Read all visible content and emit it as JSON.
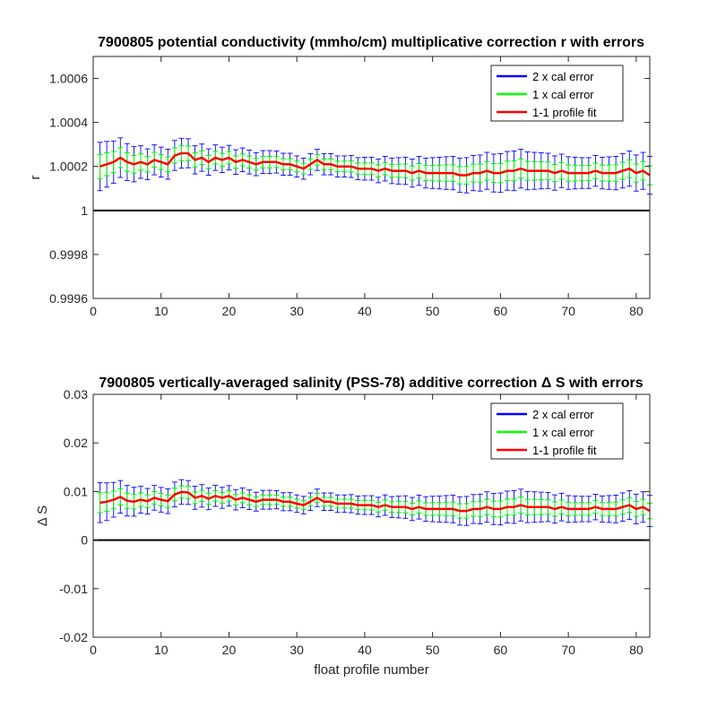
{
  "chart_data": [
    {
      "type": "line",
      "title": "7900805 potential conductivity (mmho/cm) multiplicative correction r with errors",
      "xlabel": "",
      "ylabel": "r",
      "xlim": [
        0,
        82
      ],
      "ylim": [
        0.9996,
        1.0007
      ],
      "xticks": [
        0,
        10,
        20,
        30,
        40,
        50,
        60,
        70,
        80
      ],
      "xtick_labels": [
        "0",
        "10",
        "20",
        "30",
        "40",
        "50",
        "60",
        "70",
        "80"
      ],
      "yticks": [
        0.9996,
        0.9998,
        1,
        1.0002,
        1.0004,
        1.0006
      ],
      "ytick_labels": [
        "0.9996",
        "0.9998",
        "1",
        "1.0002",
        "1.0004",
        "1.0006"
      ],
      "reference_line": 1,
      "legend_position": "top-right",
      "legend": [
        "2 x cal error",
        "1 x cal error",
        "1-1 profile fit"
      ],
      "colors": {
        "two_x_cal_error": "#0000ff",
        "one_x_cal_error": "#00ff00",
        "profile_fit": "#ff0000",
        "reference": "#000000"
      },
      "x": [
        1,
        2,
        3,
        4,
        5,
        6,
        7,
        8,
        9,
        10,
        11,
        12,
        13,
        14,
        15,
        16,
        17,
        18,
        19,
        20,
        21,
        22,
        23,
        24,
        25,
        26,
        27,
        28,
        29,
        30,
        31,
        32,
        33,
        34,
        35,
        36,
        37,
        38,
        39,
        40,
        41,
        42,
        43,
        44,
        45,
        46,
        47,
        48,
        49,
        50,
        51,
        52,
        53,
        54,
        55,
        56,
        57,
        58,
        59,
        60,
        61,
        62,
        63,
        64,
        65,
        66,
        67,
        68,
        69,
        70,
        71,
        72,
        73,
        74,
        75,
        76,
        77,
        78,
        79,
        80,
        81,
        82
      ],
      "series": [
        {
          "name": "1-1 profile fit",
          "values": [
            1.0002,
            1.00021,
            1.00022,
            1.00024,
            1.00022,
            1.00021,
            1.00022,
            1.00021,
            1.00023,
            1.00022,
            1.00021,
            1.00025,
            1.00026,
            1.00026,
            1.00023,
            1.00024,
            1.00022,
            1.00024,
            1.00023,
            1.00024,
            1.00022,
            1.00023,
            1.00022,
            1.00021,
            1.00022,
            1.00022,
            1.00022,
            1.00021,
            1.00021,
            1.0002,
            1.00019,
            1.00021,
            1.00023,
            1.00021,
            1.00021,
            1.0002,
            1.0002,
            1.0002,
            1.00019,
            1.00019,
            1.00019,
            1.00018,
            1.00019,
            1.00018,
            1.00018,
            1.00018,
            1.00017,
            1.00018,
            1.00017,
            1.00017,
            1.00017,
            1.00017,
            1.00017,
            1.00016,
            1.00016,
            1.00017,
            1.00017,
            1.00018,
            1.00017,
            1.00017,
            1.00018,
            1.00018,
            1.00019,
            1.00018,
            1.00018,
            1.00018,
            1.00018,
            1.00017,
            1.00018,
            1.00017,
            1.00017,
            1.00017,
            1.00017,
            1.00018,
            1.00017,
            1.00017,
            1.00017,
            1.00018,
            1.00019,
            1.00017,
            1.00018,
            1.00016
          ]
        }
      ],
      "cal_error_1x_halfwidth": [
        5.5e-05,
        5.2e-05,
        4.8e-05,
        4.5e-05,
        4.2e-05,
        4e-05,
        3.7e-05,
        3.5e-05,
        3.4e-05,
        3.4e-05,
        3.4e-05,
        3.4e-05,
        3.4e-05,
        3.3e-05,
        3.2e-05,
        3.1e-05,
        3e-05,
        2.9e-05,
        2.9e-05,
        2.8e-05,
        2.8e-05,
        2.7e-05,
        2.7e-05,
        2.6e-05,
        2.6e-05,
        2.6e-05,
        2.5e-05,
        2.5e-05,
        2.5e-05,
        2.4e-05,
        2.4e-05,
        2.4e-05,
        2.4e-05,
        2.4e-05,
        2.4e-05,
        2.4e-05,
        2.4e-05,
        2.5e-05,
        2.5e-05,
        2.6e-05,
        2.6e-05,
        2.7e-05,
        2.8e-05,
        2.9e-05,
        3e-05,
        3.1e-05,
        3.2e-05,
        3.3e-05,
        3.4e-05,
        3.5e-05,
        3.6e-05,
        3.7e-05,
        3.8e-05,
        3.9e-05,
        4e-05,
        4e-05,
        4.1e-05,
        4.2e-05,
        4.3e-05,
        4.4e-05,
        4.4e-05,
        4.5e-05,
        4.4e-05,
        4.3e-05,
        4.2e-05,
        4.1e-05,
        4e-05,
        3.9e-05,
        3.8e-05,
        3.7e-05,
        3.6e-05,
        3.5e-05,
        3.5e-05,
        3.5e-05,
        3.6e-05,
        3.7e-05,
        3.8e-05,
        3.9e-05,
        4e-05,
        4.1e-05,
        4.2e-05,
        4.3e-05
      ]
    },
    {
      "type": "line",
      "title": "7900805 vertically-averaged salinity (PSS-78) additive correction Δ S with errors",
      "xlabel": "float profile number",
      "ylabel": "Δ S",
      "xlim": [
        0,
        82
      ],
      "ylim": [
        -0.02,
        0.03
      ],
      "xticks": [
        0,
        10,
        20,
        30,
        40,
        50,
        60,
        70,
        80
      ],
      "xtick_labels": [
        "0",
        "10",
        "20",
        "30",
        "40",
        "50",
        "60",
        "70",
        "80"
      ],
      "yticks": [
        -0.02,
        -0.01,
        0,
        0.01,
        0.02,
        0.03
      ],
      "ytick_labels": [
        "-0.02",
        "-0.01",
        "0",
        "0.01",
        "0.02",
        "0.03"
      ],
      "reference_line": 0,
      "legend_position": "top-right",
      "legend": [
        "2 x cal error",
        "1 x cal error",
        "1-1 profile fit"
      ],
      "colors": {
        "two_x_cal_error": "#0000ff",
        "one_x_cal_error": "#00ff00",
        "profile_fit": "#ff0000",
        "reference": "#000000"
      },
      "x": [
        1,
        2,
        3,
        4,
        5,
        6,
        7,
        8,
        9,
        10,
        11,
        12,
        13,
        14,
        15,
        16,
        17,
        18,
        19,
        20,
        21,
        22,
        23,
        24,
        25,
        26,
        27,
        28,
        29,
        30,
        31,
        32,
        33,
        34,
        35,
        36,
        37,
        38,
        39,
        40,
        41,
        42,
        43,
        44,
        45,
        46,
        47,
        48,
        49,
        50,
        51,
        52,
        53,
        54,
        55,
        56,
        57,
        58,
        59,
        60,
        61,
        62,
        63,
        64,
        65,
        66,
        67,
        68,
        69,
        70,
        71,
        72,
        73,
        74,
        75,
        76,
        77,
        78,
        79,
        80,
        81,
        82
      ],
      "series": [
        {
          "name": "1-1 profile fit",
          "values": [
            0.0077,
            0.0079,
            0.0083,
            0.0089,
            0.0081,
            0.0079,
            0.0083,
            0.008,
            0.0087,
            0.0083,
            0.008,
            0.0094,
            0.0099,
            0.0098,
            0.0087,
            0.0091,
            0.0085,
            0.0091,
            0.0087,
            0.0091,
            0.0083,
            0.0087,
            0.0083,
            0.0079,
            0.0083,
            0.0083,
            0.0083,
            0.0079,
            0.0079,
            0.0075,
            0.0072,
            0.0079,
            0.0087,
            0.0079,
            0.0079,
            0.0075,
            0.0075,
            0.0075,
            0.0072,
            0.0072,
            0.0072,
            0.0068,
            0.0072,
            0.0068,
            0.0068,
            0.0068,
            0.0064,
            0.0068,
            0.0064,
            0.0064,
            0.0064,
            0.0064,
            0.0064,
            0.006,
            0.006,
            0.0064,
            0.0064,
            0.0068,
            0.0064,
            0.0064,
            0.0068,
            0.0068,
            0.0072,
            0.0068,
            0.0068,
            0.0068,
            0.0068,
            0.0064,
            0.0068,
            0.0064,
            0.0064,
            0.0064,
            0.0064,
            0.0068,
            0.0064,
            0.0064,
            0.0064,
            0.0068,
            0.0072,
            0.0064,
            0.0068,
            0.006
          ]
        }
      ],
      "cal_error_1x_halfwidth": [
        0.00205,
        0.00194,
        0.00179,
        0.00168,
        0.00157,
        0.00149,
        0.00138,
        0.00131,
        0.00127,
        0.00127,
        0.00127,
        0.00127,
        0.00127,
        0.00123,
        0.00119,
        0.00116,
        0.00112,
        0.00108,
        0.00108,
        0.00105,
        0.00105,
        0.00101,
        0.00101,
        0.00097,
        0.00097,
        0.00097,
        0.00093,
        0.00093,
        0.00093,
        0.0009,
        0.0009,
        0.0009,
        0.0009,
        0.0009,
        0.0009,
        0.0009,
        0.0009,
        0.00093,
        0.00093,
        0.00097,
        0.00097,
        0.00101,
        0.00105,
        0.00108,
        0.00112,
        0.00116,
        0.00119,
        0.00123,
        0.00127,
        0.00131,
        0.00134,
        0.00138,
        0.00142,
        0.00146,
        0.00149,
        0.00149,
        0.00153,
        0.00157,
        0.0016,
        0.00164,
        0.00164,
        0.00168,
        0.00164,
        0.0016,
        0.00157,
        0.00153,
        0.00149,
        0.00146,
        0.00142,
        0.00138,
        0.00134,
        0.00131,
        0.00131,
        0.00131,
        0.00134,
        0.00138,
        0.00142,
        0.00146,
        0.00149,
        0.00153,
        0.00157,
        0.0016
      ]
    }
  ]
}
